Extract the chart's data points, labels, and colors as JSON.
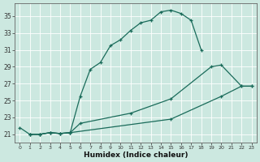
{
  "xlabel": "Humidex (Indice chaleur)",
  "xlim": [
    -0.5,
    23.5
  ],
  "ylim": [
    20.0,
    36.5
  ],
  "xticks": [
    0,
    1,
    2,
    3,
    4,
    5,
    6,
    7,
    8,
    9,
    10,
    11,
    12,
    13,
    14,
    15,
    16,
    17,
    18,
    19,
    20,
    21,
    22,
    23
  ],
  "yticks": [
    21,
    23,
    25,
    27,
    29,
    31,
    33,
    35
  ],
  "bg_color": "#cce8e0",
  "line_color": "#1a6b5a",
  "line1_x": [
    0,
    1,
    2,
    3,
    4,
    5,
    6,
    7,
    8,
    9,
    10,
    11,
    12,
    13,
    14,
    15,
    16,
    17,
    18
  ],
  "line1_y": [
    21.8,
    21.0,
    21.0,
    21.2,
    21.1,
    21.2,
    25.5,
    28.7,
    29.5,
    31.5,
    32.2,
    33.3,
    34.2,
    34.5,
    35.5,
    35.7,
    35.3,
    34.5,
    31.0
  ],
  "line2_x": [
    1,
    2,
    3,
    4,
    5,
    6,
    11,
    15,
    19,
    20,
    22,
    23
  ],
  "line2_y": [
    21.0,
    21.0,
    21.2,
    21.1,
    21.2,
    22.3,
    23.5,
    25.2,
    29.0,
    29.2,
    26.7,
    26.7
  ],
  "line3_x": [
    1,
    2,
    3,
    4,
    5,
    15,
    20,
    22,
    23
  ],
  "line3_y": [
    21.0,
    21.0,
    21.2,
    21.1,
    21.2,
    22.8,
    25.5,
    26.7,
    26.7
  ]
}
